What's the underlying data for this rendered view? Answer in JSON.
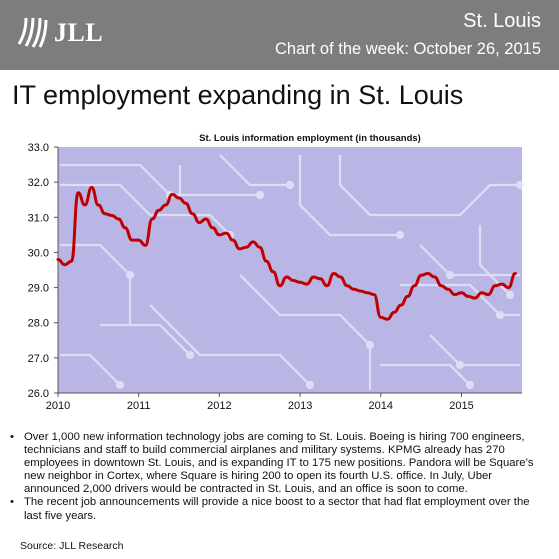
{
  "header": {
    "logo_text": "JLL",
    "city": "St. Louis",
    "subtitle": "Chart of the week: October 26, 2015"
  },
  "headline": "IT employment expanding in St. Louis",
  "colors": {
    "header_bg": "#7d7d7d",
    "line": "#c00000",
    "plot_bg": "#b9b6e6",
    "circuit": "#e9ecfb"
  },
  "bullets": [
    "Over 1,000 new information technology jobs are coming to St. Louis. Boeing is hiring 700 engineers, technicians and staff to build commercial airplanes and military systems. KPMG already has 270 employees in downtown St. Louis, and is expanding IT to 175 new positions. Pandora will be Square’s new neighbor in Cortex, where Square is hiring 200 to open its fourth U.S. office. In July, Uber announced 2,000 drivers would be contracted in St. Louis, and an office is soon to come.",
    "The recent job announcements will provide a nice boost to a sector that had flat employment over the last five years."
  ],
  "source": "Source: JLL Research",
  "chart_data": {
    "type": "line",
    "title": "St. Louis information employment (in thousands)",
    "xlabel": "",
    "ylabel": "",
    "ylim": [
      26.0,
      33.0
    ],
    "xlim": [
      2010.0,
      2015.75
    ],
    "yticks": [
      "26.0",
      "27.0",
      "28.0",
      "29.0",
      "30.0",
      "31.0",
      "32.0",
      "33.0"
    ],
    "xticks": [
      "2010",
      "2011",
      "2012",
      "2013",
      "2014",
      "2015"
    ],
    "grid": false,
    "series": [
      {
        "x": [
          2010.0,
          2010.083,
          2010.167,
          2010.25,
          2010.333,
          2010.417,
          2010.5,
          2010.583,
          2010.667,
          2010.75,
          2010.833,
          2010.917,
          2011.0,
          2011.083,
          2011.167,
          2011.25,
          2011.333,
          2011.417,
          2011.5,
          2011.583,
          2011.667,
          2011.75,
          2011.833,
          2011.917,
          2012.0,
          2012.083,
          2012.167,
          2012.25,
          2012.333,
          2012.417,
          2012.5,
          2012.583,
          2012.667,
          2012.75,
          2012.833,
          2012.917,
          2013.0,
          2013.083,
          2013.167,
          2013.25,
          2013.333,
          2013.417,
          2013.5,
          2013.583,
          2013.667,
          2013.75,
          2013.833,
          2013.917,
          2014.0,
          2014.083,
          2014.167,
          2014.25,
          2014.333,
          2014.417,
          2014.5,
          2014.583,
          2014.667,
          2014.75,
          2014.833,
          2014.917,
          2015.0,
          2015.083,
          2015.167,
          2015.25,
          2015.333,
          2015.417,
          2015.5,
          2015.583,
          2015.667
        ],
        "values": [
          29.8,
          29.65,
          29.75,
          31.7,
          31.35,
          31.85,
          31.35,
          31.1,
          31.05,
          30.95,
          30.7,
          30.35,
          30.35,
          30.2,
          30.95,
          31.2,
          31.35,
          31.65,
          31.55,
          31.4,
          31.1,
          30.85,
          30.95,
          30.7,
          30.5,
          30.55,
          30.35,
          30.1,
          30.15,
          30.3,
          30.15,
          29.75,
          29.45,
          29.05,
          29.3,
          29.2,
          29.15,
          29.1,
          29.3,
          29.25,
          29.05,
          29.4,
          29.3,
          29.05,
          28.95,
          28.9,
          28.85,
          28.8,
          28.15,
          28.1,
          28.3,
          28.5,
          28.75,
          29.05,
          29.35,
          29.4,
          29.3,
          29.05,
          28.95,
          28.8,
          28.85,
          28.75,
          28.7,
          28.85,
          28.8,
          29.05,
          29.1,
          29.0,
          29.4
        ]
      }
    ]
  }
}
